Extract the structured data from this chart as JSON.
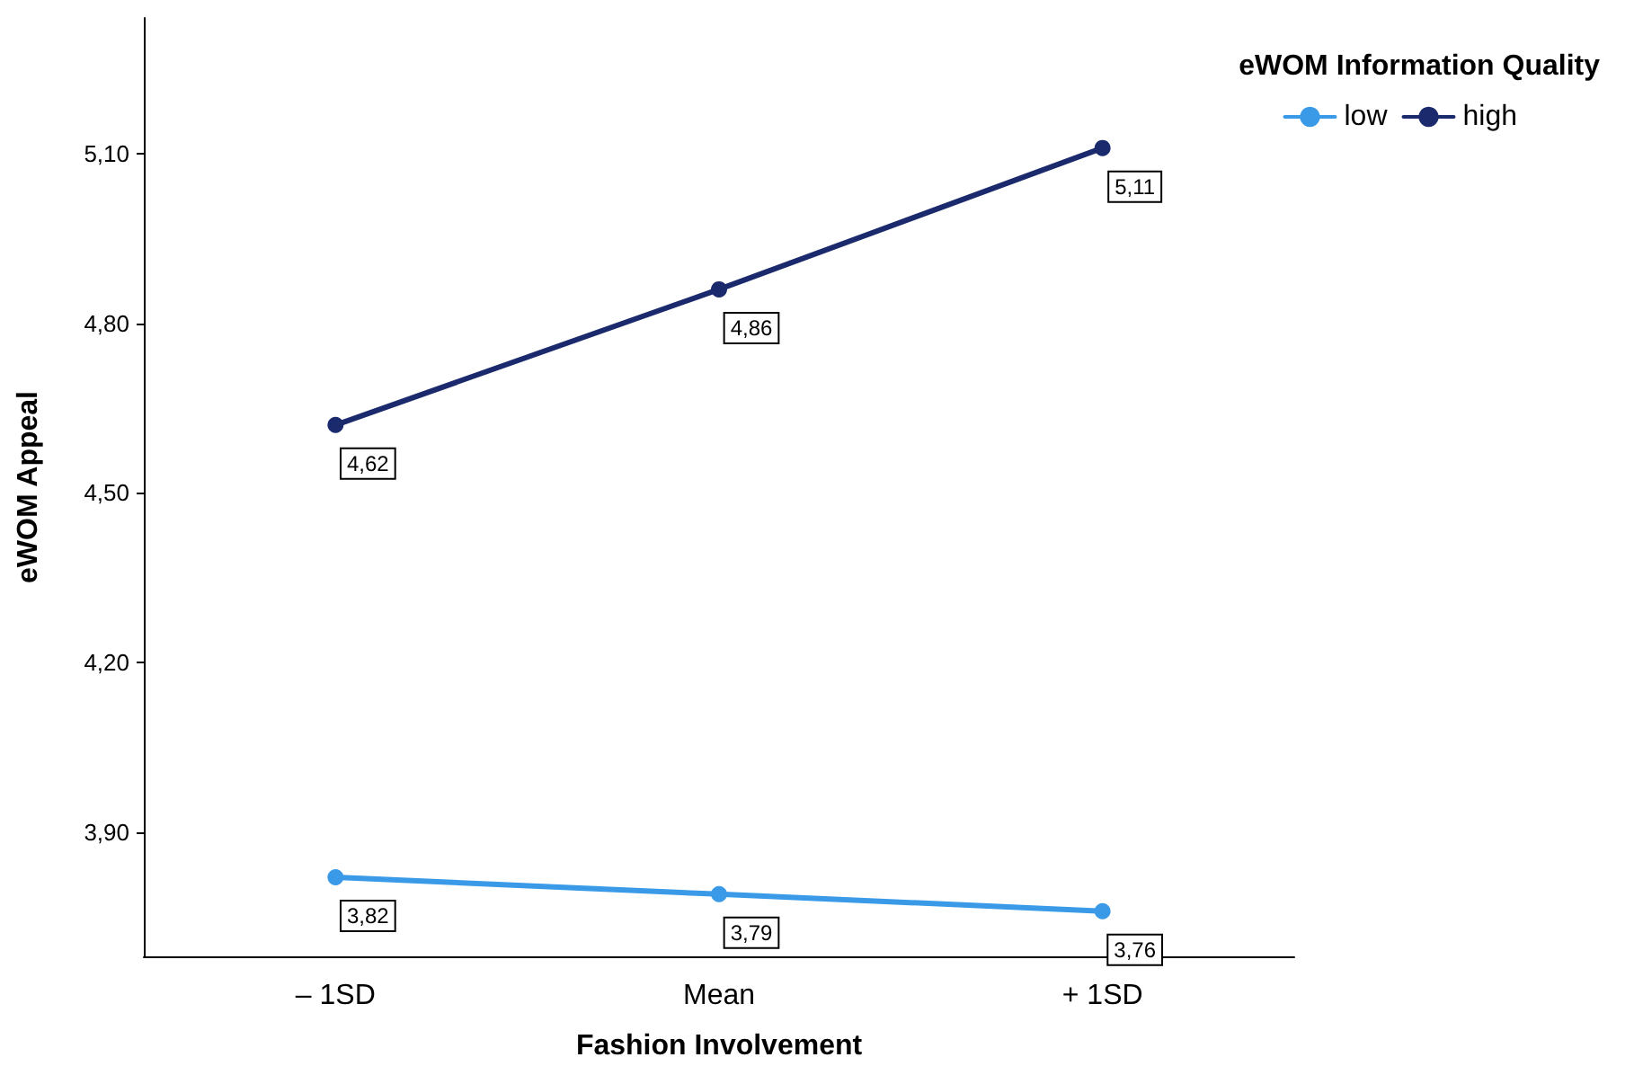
{
  "chart_data": {
    "type": "line",
    "xlabel": "Fashion Involvement",
    "ylabel": "eWOM Appeal",
    "legend_title": "eWOM Information Quality",
    "categories": [
      "– 1SD",
      "Mean",
      "+ 1SD"
    ],
    "series": [
      {
        "name": "low",
        "color": "#3a9ae8",
        "values": [
          3.82,
          3.79,
          3.76
        ],
        "value_labels": [
          "3,82",
          "3,79",
          "3,76"
        ]
      },
      {
        "name": "high",
        "color": "#1a2a6c",
        "values": [
          4.62,
          4.86,
          5.11
        ],
        "value_labels": [
          "4,62",
          "4,86",
          "5,11"
        ]
      }
    ],
    "ylim": [
      3.68,
      5.34
    ],
    "yticks": [
      {
        "value": 3.9,
        "label": "3,90"
      },
      {
        "value": 4.2,
        "label": "4,20"
      },
      {
        "value": 4.5,
        "label": "4,50"
      },
      {
        "value": 4.8,
        "label": "4,80"
      },
      {
        "value": 5.1,
        "label": "5,10"
      }
    ],
    "grid": false,
    "legend": "top right",
    "marker": "circle",
    "line_style": "solid"
  }
}
